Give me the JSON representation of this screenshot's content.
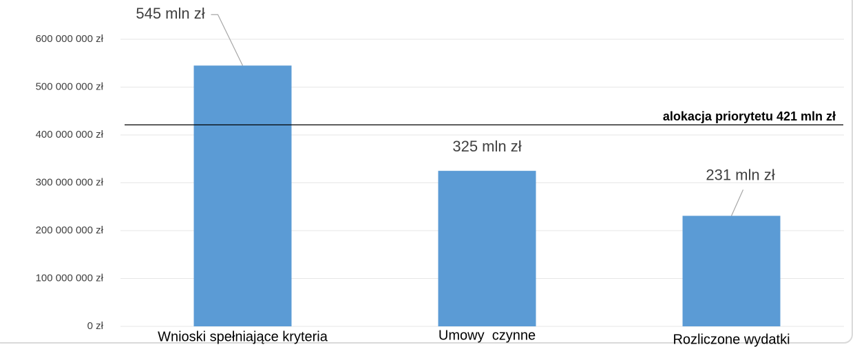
{
  "chart_data": {
    "type": "bar",
    "categories": [
      "Wnioski spełniające kryteria",
      "Umowy  czynne",
      "Rozliczone wydatki"
    ],
    "values": [
      545000000,
      325000000,
      231000000
    ],
    "value_labels": [
      "545 mln zł",
      "325 mln zł",
      "231 mln zł"
    ],
    "color": "#5b9bd5",
    "ylim": [
      0,
      600000000
    ],
    "yticks": [
      {
        "value": 0,
        "label": "0 zł"
      },
      {
        "value": 100000000,
        "label": "100 000 000 zł"
      },
      {
        "value": 200000000,
        "label": "200 000 000 zł"
      },
      {
        "value": 300000000,
        "label": "300 000 000 zł"
      },
      {
        "value": 400000000,
        "label": "400 000 000 zł"
      },
      {
        "value": 500000000,
        "label": "500 000 000 zł"
      },
      {
        "value": 600000000,
        "label": "600 000 000 zł"
      }
    ],
    "grid": true,
    "reference_line": {
      "value": 421000000,
      "label": "alokacja priorytetu 421 mln zł"
    }
  }
}
